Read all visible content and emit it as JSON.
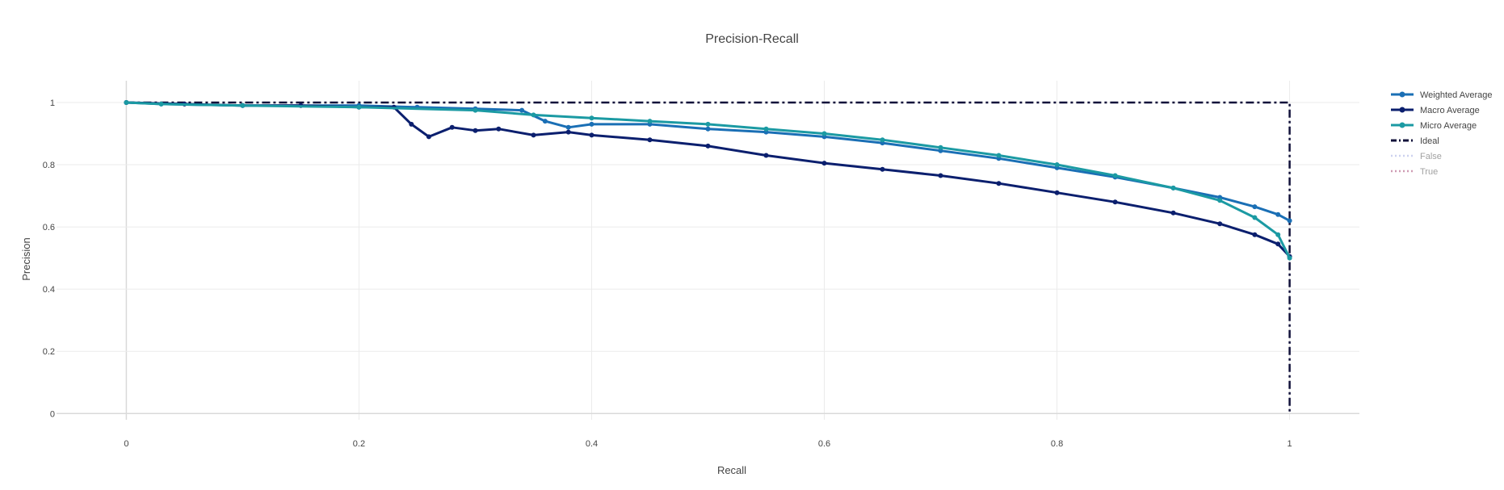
{
  "chart_data": {
    "type": "line",
    "title": "Precision-Recall",
    "xlabel": "Recall",
    "ylabel": "Precision",
    "xlim": [
      -0.06,
      1.06
    ],
    "ylim": [
      -0.02,
      1.07
    ],
    "x_ticks": [
      "0",
      "0.2",
      "0.4",
      "0.6",
      "0.8",
      "1"
    ],
    "y_ticks": [
      "0",
      "0.2",
      "0.4",
      "0.6",
      "0.8",
      "1"
    ],
    "grid": true,
    "legend_position": "top-right",
    "series": [
      {
        "name": "Weighted Average",
        "color": "#1a6fb5",
        "line_style": "solid",
        "markers": true,
        "visible": true,
        "x": [
          0,
          0.03,
          0.1,
          0.2,
          0.25,
          0.3,
          0.34,
          0.36,
          0.38,
          0.4,
          0.45,
          0.5,
          0.55,
          0.6,
          0.65,
          0.7,
          0.75,
          0.8,
          0.85,
          0.9,
          0.94,
          0.97,
          0.99,
          1.0
        ],
        "y": [
          1.0,
          0.995,
          0.99,
          0.99,
          0.985,
          0.98,
          0.975,
          0.94,
          0.92,
          0.93,
          0.93,
          0.915,
          0.905,
          0.89,
          0.87,
          0.845,
          0.82,
          0.79,
          0.76,
          0.725,
          0.695,
          0.665,
          0.64,
          0.62
        ]
      },
      {
        "name": "Macro Average",
        "color": "#0b1f6e",
        "line_style": "solid",
        "markers": true,
        "visible": true,
        "x": [
          0,
          0.05,
          0.1,
          0.15,
          0.2,
          0.23,
          0.245,
          0.26,
          0.28,
          0.3,
          0.32,
          0.35,
          0.38,
          0.4,
          0.45,
          0.5,
          0.55,
          0.6,
          0.65,
          0.7,
          0.75,
          0.8,
          0.85,
          0.9,
          0.94,
          0.97,
          0.99,
          1.0
        ],
        "y": [
          1.0,
          0.995,
          0.99,
          0.99,
          0.985,
          0.985,
          0.93,
          0.89,
          0.92,
          0.91,
          0.915,
          0.895,
          0.905,
          0.895,
          0.88,
          0.86,
          0.83,
          0.805,
          0.785,
          0.765,
          0.74,
          0.71,
          0.68,
          0.645,
          0.61,
          0.575,
          0.545,
          0.505
        ]
      },
      {
        "name": "Micro Average",
        "color": "#1b9aa3",
        "line_style": "solid",
        "markers": true,
        "visible": true,
        "x": [
          0,
          0.03,
          0.1,
          0.2,
          0.3,
          0.35,
          0.4,
          0.45,
          0.5,
          0.55,
          0.6,
          0.65,
          0.7,
          0.75,
          0.8,
          0.85,
          0.9,
          0.94,
          0.97,
          0.99,
          1.0
        ],
        "y": [
          1.0,
          0.995,
          0.99,
          0.985,
          0.975,
          0.96,
          0.95,
          0.94,
          0.93,
          0.915,
          0.9,
          0.88,
          0.855,
          0.83,
          0.8,
          0.765,
          0.725,
          0.685,
          0.63,
          0.575,
          0.5
        ]
      },
      {
        "name": "Ideal",
        "color": "#11113a",
        "line_style": "dashdot",
        "markers": false,
        "visible": true,
        "x": [
          0,
          1,
          1
        ],
        "y": [
          1,
          1,
          0
        ]
      },
      {
        "name": "False",
        "color": "#9aa5e0",
        "line_style": "dot",
        "markers": false,
        "visible": false,
        "x": [],
        "y": []
      },
      {
        "name": "True",
        "color": "#a03a6a",
        "line_style": "dot",
        "markers": false,
        "visible": false,
        "x": [],
        "y": []
      }
    ]
  }
}
